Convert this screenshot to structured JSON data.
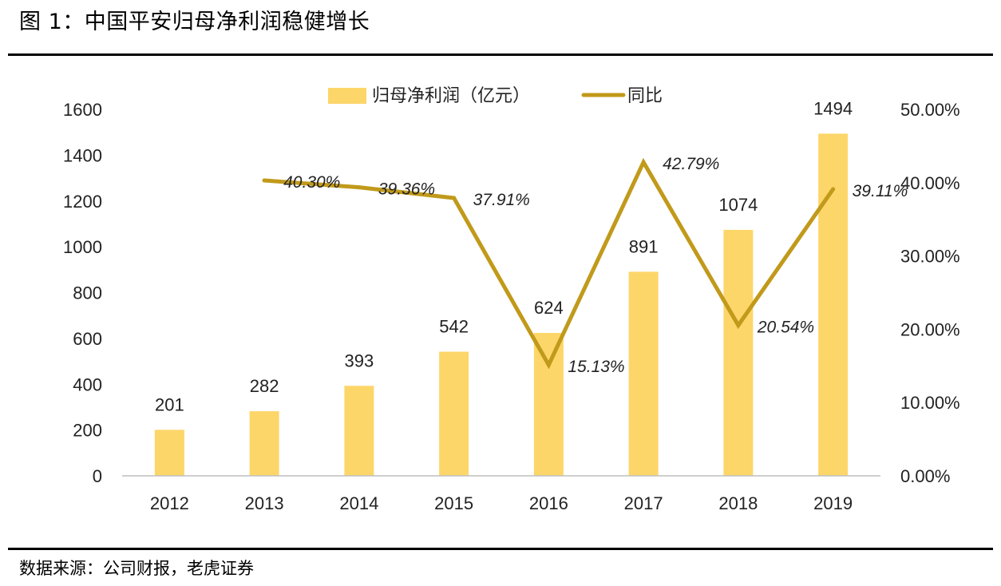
{
  "title": "图 1：中国平安归母净利润稳健增长",
  "source": "数据来源：公司财报，老虎证券",
  "colors": {
    "bar": "#FDD66A",
    "line": "#C19A1B",
    "axis": "#BFBFBF"
  },
  "chart_data": {
    "type": "bar+line",
    "categories": [
      "2012",
      "2013",
      "2014",
      "2015",
      "2016",
      "2017",
      "2018",
      "2019"
    ],
    "series": [
      {
        "name": "归母净利润（亿元）",
        "type": "bar",
        "axis": "left",
        "values": [
          201,
          282,
          393,
          542,
          624,
          891,
          1074,
          1494
        ],
        "labels": [
          "201",
          "282",
          "393",
          "542",
          "624",
          "891",
          "1074",
          "1494"
        ]
      },
      {
        "name": "同比",
        "type": "line",
        "axis": "right",
        "values": [
          null,
          40.3,
          39.36,
          37.91,
          15.13,
          42.79,
          20.54,
          39.11
        ],
        "labels": [
          "",
          "40.30%",
          "39.36%",
          "37.91%",
          "15.13%",
          "42.79%",
          "20.54%",
          "39.11%"
        ]
      }
    ],
    "y_left": {
      "min": 0,
      "max": 1600,
      "ticks": [
        "0",
        "200",
        "400",
        "600",
        "800",
        "1000",
        "1200",
        "1400",
        "1600"
      ]
    },
    "y_right": {
      "min": 0,
      "max": 50,
      "ticks": [
        "0.00%",
        "10.00%",
        "20.00%",
        "30.00%",
        "40.00%",
        "50.00%"
      ]
    },
    "legend": {
      "position": "top-center",
      "entries": [
        "归母净利润（亿元）",
        "同比"
      ]
    },
    "grid": false
  }
}
